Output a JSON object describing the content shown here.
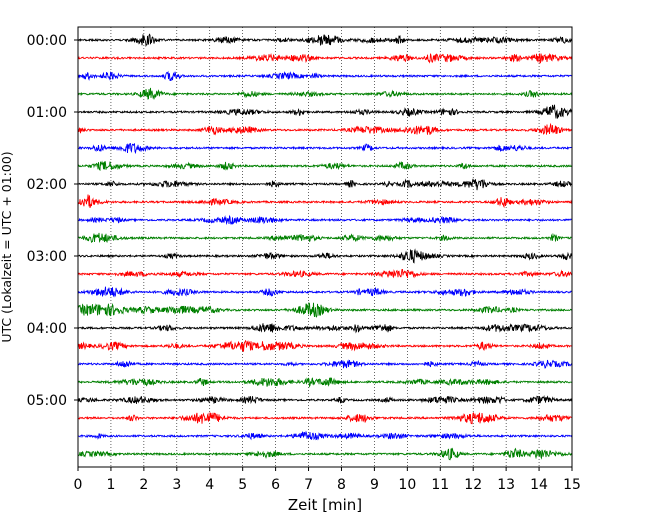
{
  "chart_data": {
    "type": "line",
    "xlabel": "Zeit  [min]",
    "ylabel": "UTC (Lokalzeit = UTC + 01:00)",
    "xlim": [
      0,
      15
    ],
    "x_ticks": [
      0,
      1,
      2,
      3,
      4,
      5,
      6,
      7,
      8,
      9,
      10,
      11,
      12,
      13,
      14,
      15
    ],
    "y_tick_labels": [
      "00:00",
      "01:00",
      "02:00",
      "03:00",
      "04:00",
      "05:00"
    ],
    "traces_per_hour": 4,
    "trace_minutes": 15,
    "trace_count": 24,
    "trace_colors": [
      "#000000",
      "#ff0000",
      "#0000ff",
      "#008000"
    ],
    "vertical_grid": "dotted",
    "horizontal_grid": false,
    "legend": false
  }
}
